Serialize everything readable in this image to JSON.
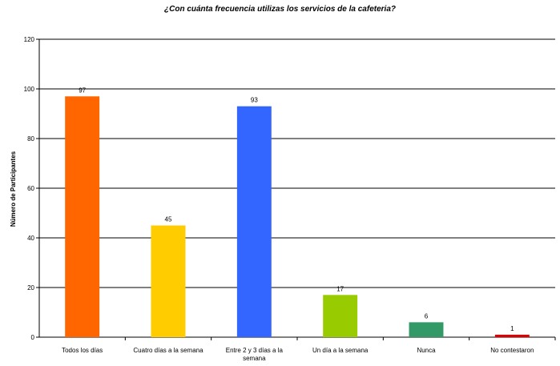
{
  "chart_data": {
    "type": "bar",
    "title": "¿Con cuánta frecuencia utilizas los servicios de la cafeteria?",
    "xlabel": "",
    "ylabel": "Número de Participantes",
    "ylim": [
      0,
      120
    ],
    "yticks": [
      0,
      20,
      40,
      60,
      80,
      100,
      120
    ],
    "grid": true,
    "legend": "none",
    "categories": [
      [
        "Todos los días"
      ],
      [
        "Cuatro días a la semana"
      ],
      [
        "Entre 2 y 3 días a la",
        "semana"
      ],
      [
        "Un día a la semana"
      ],
      [
        "Nunca"
      ],
      [
        "No contestaron"
      ]
    ],
    "values": [
      97,
      45,
      93,
      17,
      6,
      1
    ],
    "colors": [
      "#ff6600",
      "#ffcc00",
      "#3366ff",
      "#99cc00",
      "#339966",
      "#dd0000"
    ]
  }
}
